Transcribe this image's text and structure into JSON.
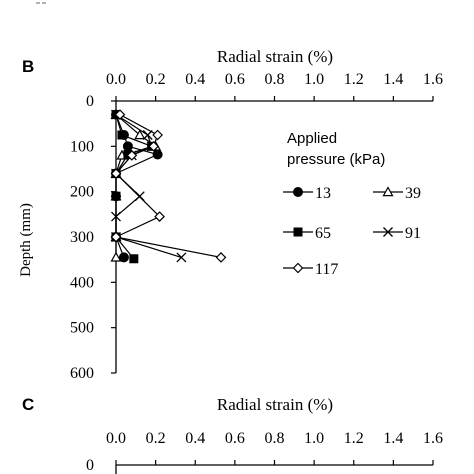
{
  "chart_data": [
    {
      "panel": "B",
      "type": "line",
      "title": "",
      "xlabel": "Radial strain (%)",
      "ylabel": "Depth (mm)",
      "x_axis_position": "top",
      "y_axis_inverted": true,
      "xlim": [
        0,
        1.6
      ],
      "ylim": [
        0,
        600
      ],
      "xticks": [
        "0.0",
        "0.2",
        "0.4",
        "0.6",
        "0.8",
        "1.0",
        "1.2",
        "1.4",
        "1.6"
      ],
      "yticks": [
        "0",
        "100",
        "200",
        "300",
        "400",
        "500",
        "600"
      ],
      "grid": false,
      "legend_title": "Applied\npressure (kPa)",
      "legend_position": "right",
      "series": [
        {
          "name": "13",
          "marker": "filled-circle",
          "points": [
            [
              0.0,
              30
            ],
            [
              0.04,
              75
            ],
            [
              0.06,
              100
            ],
            [
              0.21,
              118
            ],
            [
              0.0,
              160
            ],
            [
              0.0,
              210
            ],
            [
              0.0,
              300
            ],
            [
              0.04,
              345
            ]
          ]
        },
        {
          "name": "39",
          "marker": "open-triangle",
          "points": [
            [
              0.0,
              30
            ],
            [
              0.12,
              75
            ],
            [
              0.2,
              100
            ],
            [
              0.03,
              120
            ],
            [
              0.0,
              160
            ],
            [
              0.0,
              210
            ],
            [
              0.0,
              300
            ],
            [
              0.0,
              345
            ]
          ]
        },
        {
          "name": "65",
          "marker": "filled-square",
          "points": [
            [
              0.0,
              30
            ],
            [
              0.03,
              75
            ],
            [
              0.18,
              100
            ],
            [
              0.06,
              118
            ],
            [
              0.0,
              160
            ],
            [
              0.0,
              210
            ],
            [
              0.0,
              300
            ],
            [
              0.09,
              348
            ]
          ]
        },
        {
          "name": "91",
          "marker": "cross",
          "points": [
            [
              0.0,
              30
            ],
            [
              0.16,
              75
            ],
            [
              0.18,
              100
            ],
            [
              0.08,
              120
            ],
            [
              0.0,
              160
            ],
            [
              0.12,
              210
            ],
            [
              0.0,
              255
            ],
            [
              0.0,
              300
            ],
            [
              0.33,
              345
            ]
          ]
        },
        {
          "name": "117",
          "marker": "open-diamond",
          "points": [
            [
              0.02,
              30
            ],
            [
              0.21,
              75
            ],
            [
              0.19,
              100
            ],
            [
              0.08,
              120
            ],
            [
              0.0,
              160
            ],
            [
              0.22,
              255
            ],
            [
              0.0,
              300
            ],
            [
              0.53,
              345
            ]
          ]
        }
      ]
    },
    {
      "panel": "C",
      "type": "line",
      "title": "",
      "xlabel": "Radial strain (%)",
      "x_axis_position": "top",
      "y_axis_inverted": true,
      "xlim": [
        0,
        1.6
      ],
      "xticks": [
        "0.0",
        "0.2",
        "0.4",
        "0.6",
        "0.8",
        "1.0",
        "1.2",
        "1.4",
        "1.6"
      ],
      "yticks": [
        "0"
      ],
      "series": []
    }
  ]
}
